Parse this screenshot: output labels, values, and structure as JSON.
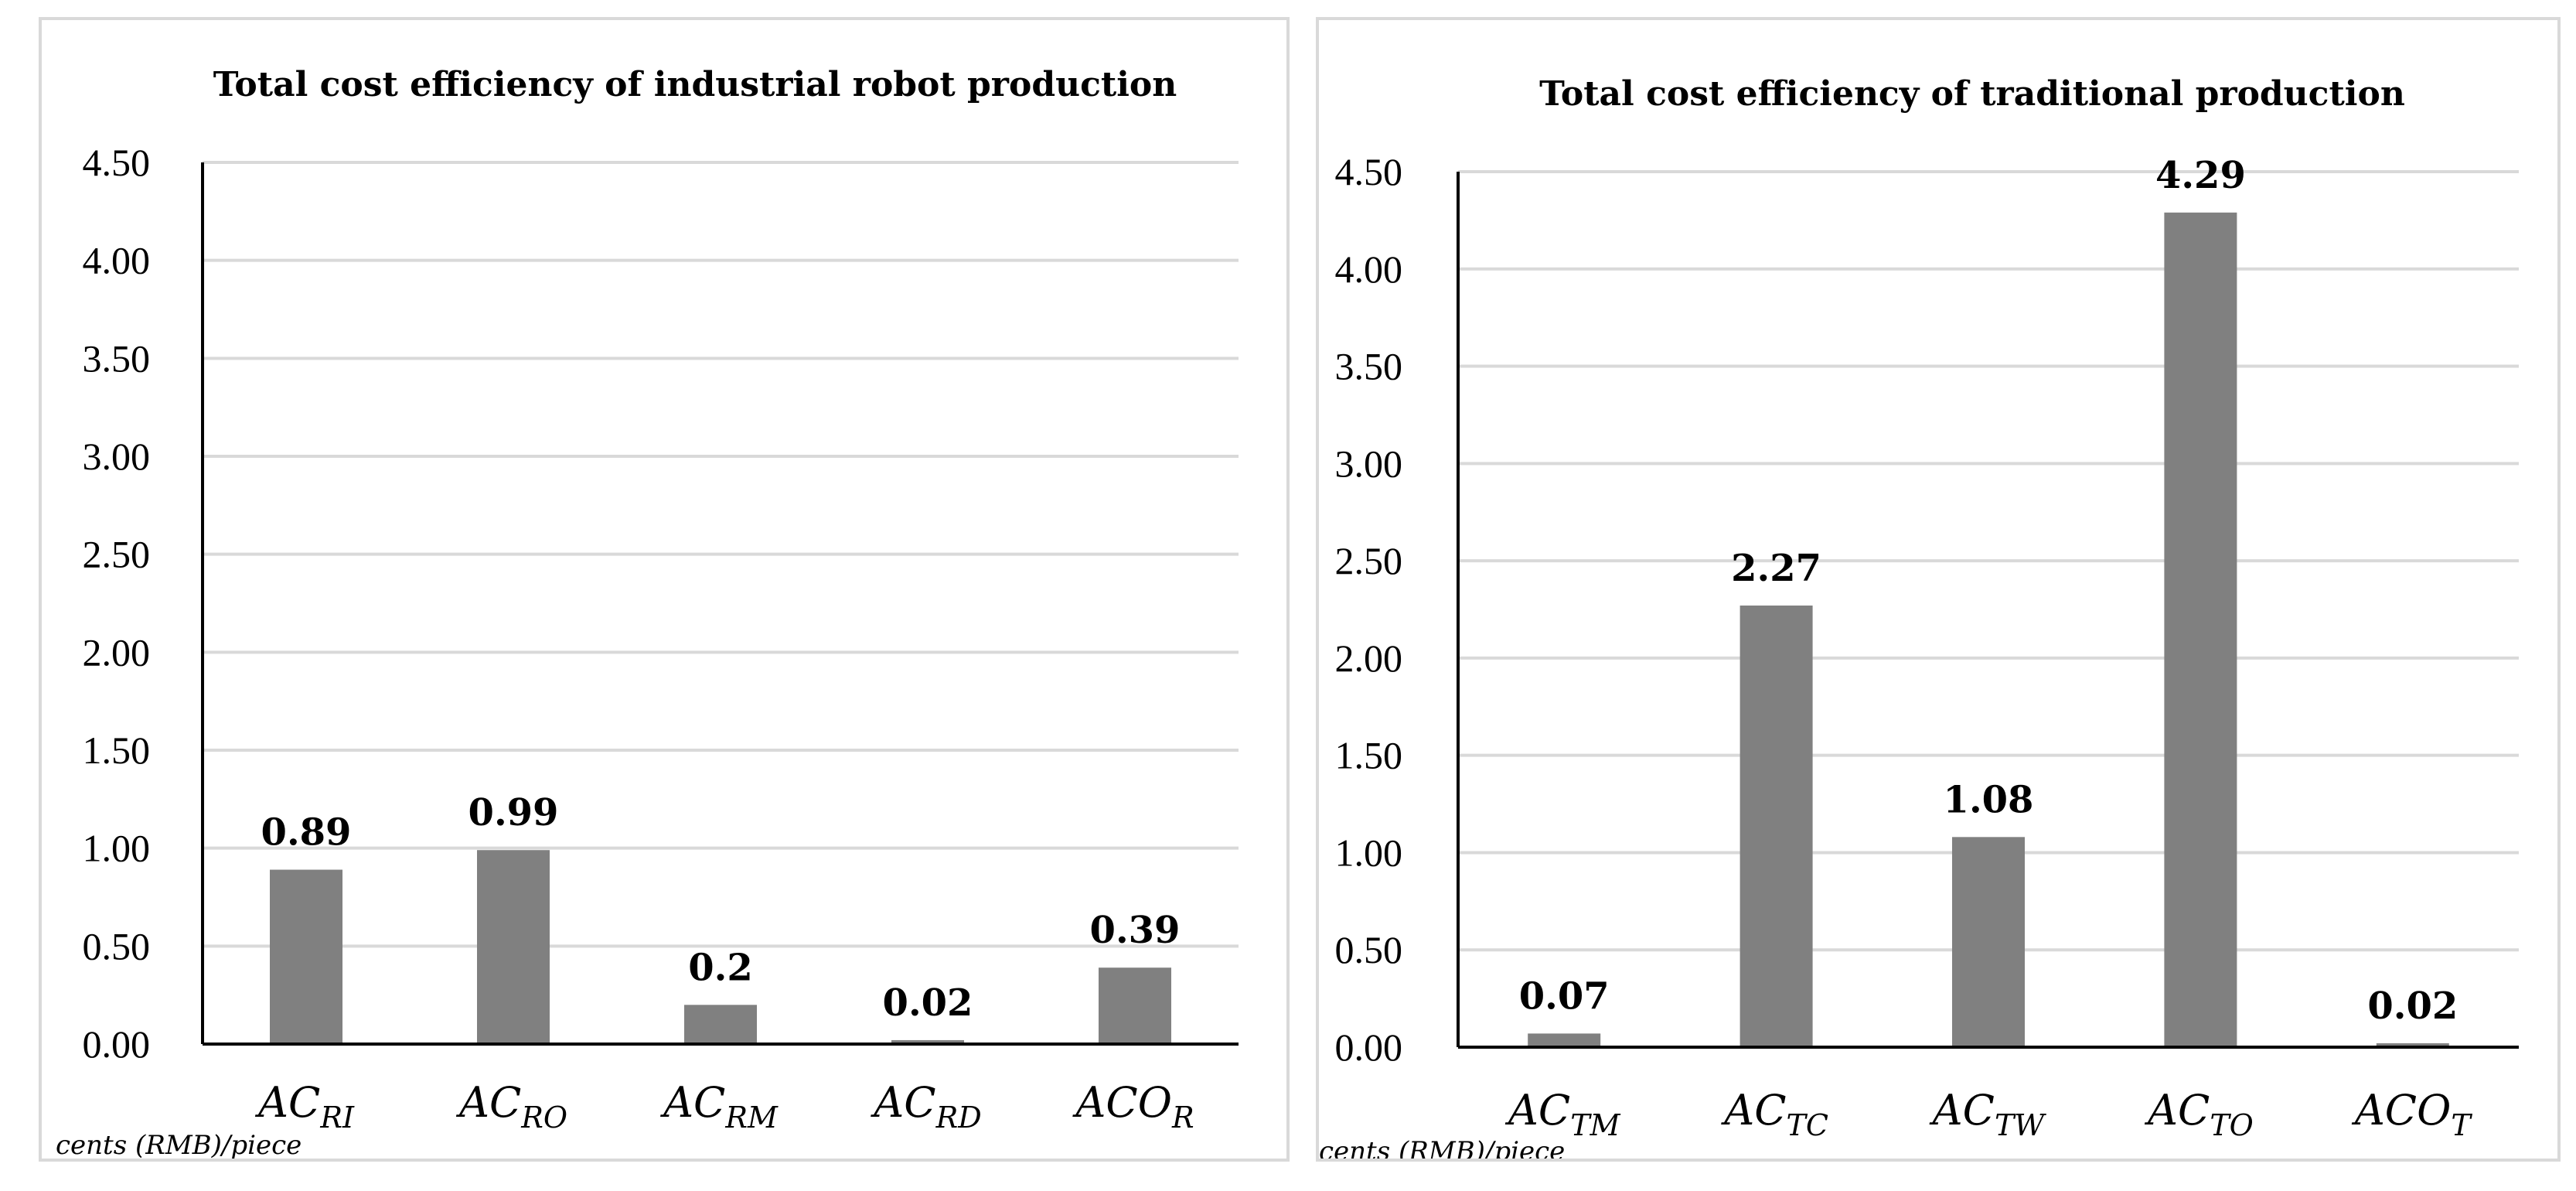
{
  "chart_data": [
    {
      "type": "bar",
      "title": "Total cost efficiency of industrial robot production",
      "categories": [
        {
          "main": "AC",
          "sub": "RI"
        },
        {
          "main": "AC",
          "sub": "RO"
        },
        {
          "main": "AC",
          "sub": "RM"
        },
        {
          "main": "AC",
          "sub": "RD"
        },
        {
          "main": "ACO",
          "sub": "R"
        }
      ],
      "values": [
        0.89,
        0.99,
        0.2,
        0.02,
        0.39
      ],
      "value_labels": [
        "0.89",
        "0.99",
        "0.2",
        "0.02",
        "0.39"
      ],
      "ylim": [
        0,
        4.5
      ],
      "yticks": [
        0,
        0.5,
        1.0,
        1.5,
        2.0,
        2.5,
        3.0,
        3.5,
        4.0,
        4.5
      ],
      "ytick_labels": [
        "0.00",
        "0.50",
        "1.00",
        "1.50",
        "2.00",
        "2.50",
        "3.00",
        "3.50",
        "4.00",
        "4.50"
      ],
      "xlabel": "",
      "ylabel": "",
      "unit_note": "cents (RMB)/piece",
      "grid": true,
      "bar_color": "#808080"
    },
    {
      "type": "bar",
      "title": "Total cost efficiency of traditional production",
      "categories": [
        {
          "main": "AC",
          "sub": "TM"
        },
        {
          "main": "AC",
          "sub": "TC"
        },
        {
          "main": "AC",
          "sub": "TW"
        },
        {
          "main": "AC",
          "sub": "TO"
        },
        {
          "main": "ACO",
          "sub": "T"
        }
      ],
      "values": [
        0.07,
        2.27,
        1.08,
        4.29,
        0.02
      ],
      "value_labels": [
        "0.07",
        "2.27",
        "1.08",
        "4.29",
        "0.02"
      ],
      "ylim": [
        0,
        4.5
      ],
      "yticks": [
        0,
        0.5,
        1.0,
        1.5,
        2.0,
        2.5,
        3.0,
        3.5,
        4.0,
        4.5
      ],
      "ytick_labels": [
        "0.00",
        "0.50",
        "1.00",
        "1.50",
        "2.00",
        "2.50",
        "3.00",
        "3.50",
        "4.00",
        "4.50"
      ],
      "xlabel": "",
      "ylabel": "",
      "unit_note": "cents (RMB)/piece",
      "grid": true,
      "bar_color": "#808080"
    }
  ]
}
